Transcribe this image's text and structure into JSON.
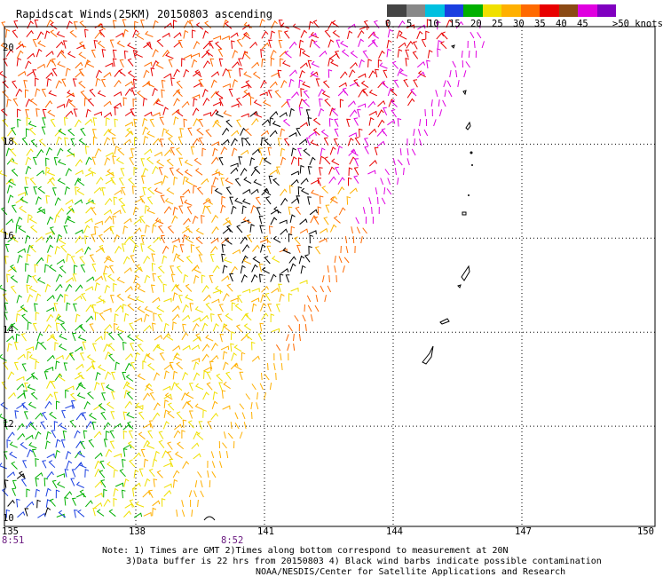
{
  "title": "Rapidscat Winds(25KM) 20150803 ascending",
  "colorbar": {
    "labels": [
      "0",
      "5",
      "10",
      "15",
      "20",
      "25",
      "30",
      "35",
      "40",
      "45",
      ">50 knots"
    ],
    "colors": [
      "#444444",
      "#888888",
      "#00c0e0",
      "#1a3fe0",
      "#00b000",
      "#f0e000",
      "#ffb000",
      "#ff6a00",
      "#e80000",
      "#8b4a14",
      "#e000e0",
      "#8000c0"
    ]
  },
  "axes": {
    "lat_labels": [
      "20",
      "18",
      "16",
      "14",
      "12",
      "10"
    ],
    "lon_labels": [
      "135",
      "138",
      "141",
      "144",
      "147",
      "150"
    ]
  },
  "times": [
    "8:51",
    "8:52"
  ],
  "notes": [
    "Note: 1) Times are GMT 2)Times along bottom correspond to measurement at 20N",
    "3)Data buffer is 22 hrs from 20150803 4) Black wind barbs indicate possible contamination",
    "NOAA/NESDIS/Center for Satellite Applications and Research"
  ]
}
